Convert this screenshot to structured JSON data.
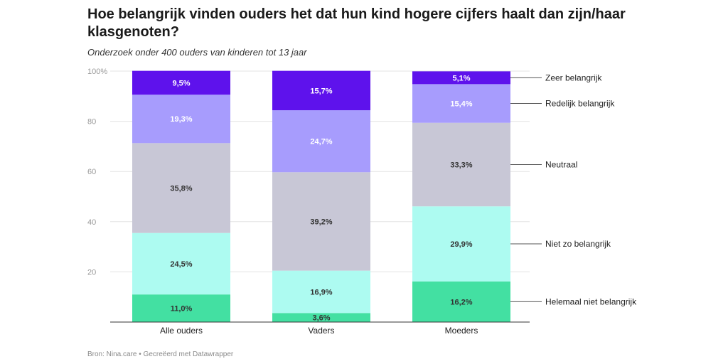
{
  "header": {
    "title": "Hoe belangrijk vinden ouders het dat hun kind hogere cijfers haalt dan zijn/haar klasgenoten?",
    "subtitle": "Onderzoek onder 400 ouders van kinderen tot 13 jaar"
  },
  "footer": {
    "source": "Bron: Nina.care • Gecreëerd met Datawrapper"
  },
  "chart_data": {
    "type": "bar",
    "stacked": true,
    "orientation": "vertical",
    "categories": [
      "Alle ouders",
      "Vaders",
      "Moeders"
    ],
    "ylim": [
      0,
      100
    ],
    "yticks": [
      20,
      40,
      60,
      80,
      100
    ],
    "ytick_labels": [
      "20",
      "40",
      "60",
      "80",
      "100%"
    ],
    "grid": true,
    "legend_placement": "right",
    "series": [
      {
        "name": "Helemaal niet belangrijk",
        "values": [
          11.0,
          3.6,
          16.2
        ],
        "labels": [
          "11,0%",
          "3,6%",
          "16,2%"
        ],
        "color": "#43e0a2",
        "label_color": "#333333"
      },
      {
        "name": "Niet zo belangrijk",
        "values": [
          24.5,
          16.9,
          29.9
        ],
        "labels": [
          "24,5%",
          "16,9%",
          "29,9%"
        ],
        "color": "#adfbf1",
        "label_color": "#333333"
      },
      {
        "name": "Neutraal",
        "values": [
          35.8,
          39.2,
          33.3
        ],
        "labels": [
          "35,8%",
          "39,2%",
          "33,3%"
        ],
        "color": "#c8c7d6",
        "label_color": "#333333"
      },
      {
        "name": "Redelijk belangrijk",
        "values": [
          19.3,
          24.7,
          15.4
        ],
        "labels": [
          "19,3%",
          "24,7%",
          "15,4%"
        ],
        "color": "#a79cfd",
        "label_color": "#ffffff"
      },
      {
        "name": "Zeer belangrijk",
        "values": [
          9.5,
          15.7,
          5.1
        ],
        "labels": [
          "9,5%",
          "15,7%",
          "5,1%"
        ],
        "color": "#5e12ec",
        "label_color": "#ffffff"
      }
    ]
  }
}
